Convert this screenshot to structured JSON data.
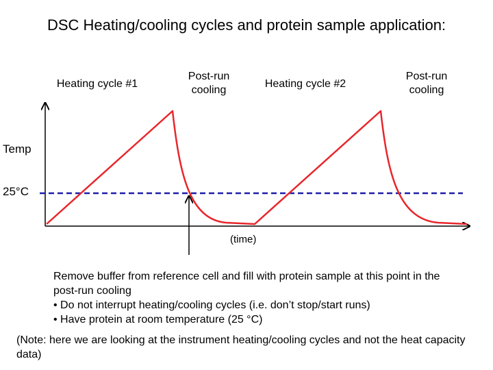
{
  "title": "DSC Heating/cooling cycles and protein sample application:",
  "phases": [
    {
      "label": "Heating cycle #1"
    },
    {
      "label": "Post-run\ncooling"
    },
    {
      "label": "Heating cycle #2"
    },
    {
      "label": "Post-run\ncooling"
    }
  ],
  "axes": {
    "y_label": "Temp",
    "x_label": "(time)",
    "reference_label": "25°C"
  },
  "notes": {
    "main": "Remove buffer from reference cell and fill with protein sample at this point in the post-run cooling",
    "bullets": [
      "• Do not interrupt heating/cooling cycles (i.e. don’t stop/start runs)",
      "• Have protein at room temperature (25 °C)"
    ]
  },
  "footnote": "(Note: here we are looking at the instrument heating/cooling cycles and not the heat capacity data)",
  "colors": {
    "curve": "#e8262b",
    "reference_line": "#1c1ca8",
    "axes": "#000000"
  }
}
